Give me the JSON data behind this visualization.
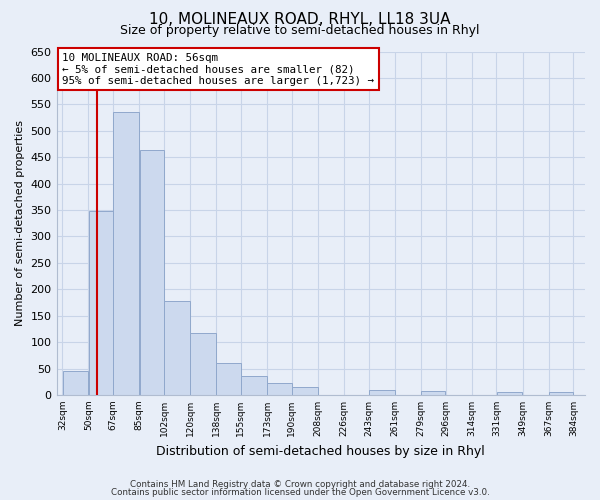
{
  "title": "10, MOLINEAUX ROAD, RHYL, LL18 3UA",
  "subtitle": "Size of property relative to semi-detached houses in Rhyl",
  "xlabel": "Distribution of semi-detached houses by size in Rhyl",
  "ylabel": "Number of semi-detached properties",
  "footnote1": "Contains HM Land Registry data © Crown copyright and database right 2024.",
  "footnote2": "Contains public sector information licensed under the Open Government Licence v3.0.",
  "annotation_line1": "10 MOLINEAUX ROAD: 56sqm",
  "annotation_line2": "← 5% of semi-detached houses are smaller (82)",
  "annotation_line3": "95% of semi-detached houses are larger (1,723) →",
  "bar_left_edges": [
    32,
    50,
    67,
    85,
    102,
    120,
    138,
    155,
    173,
    190,
    208,
    226,
    243,
    261,
    279,
    296,
    314,
    331,
    349,
    367
  ],
  "bar_widths": [
    18,
    17,
    18,
    17,
    18,
    18,
    17,
    18,
    17,
    18,
    18,
    17,
    18,
    18,
    17,
    18,
    17,
    18,
    18,
    17
  ],
  "bar_heights": [
    46,
    348,
    535,
    464,
    178,
    118,
    61,
    35,
    22,
    15,
    0,
    0,
    10,
    0,
    8,
    0,
    0,
    5,
    0,
    5
  ],
  "bar_color": "#ccd9ee",
  "bar_edge_color": "#90a8cc",
  "marker_x": 56,
  "marker_color": "#cc0000",
  "ylim": [
    0,
    650
  ],
  "yticks": [
    0,
    50,
    100,
    150,
    200,
    250,
    300,
    350,
    400,
    450,
    500,
    550,
    600,
    650
  ],
  "xtick_labels": [
    "32sqm",
    "50sqm",
    "67sqm",
    "85sqm",
    "102sqm",
    "120sqm",
    "138sqm",
    "155sqm",
    "173sqm",
    "190sqm",
    "208sqm",
    "226sqm",
    "243sqm",
    "261sqm",
    "279sqm",
    "296sqm",
    "314sqm",
    "331sqm",
    "349sqm",
    "367sqm",
    "384sqm"
  ],
  "xtick_positions": [
    32,
    50,
    67,
    85,
    102,
    120,
    138,
    155,
    173,
    190,
    208,
    226,
    243,
    261,
    279,
    296,
    314,
    331,
    349,
    367,
    384
  ],
  "grid_color": "#c8d4e8",
  "background_color": "#e8eef8"
}
